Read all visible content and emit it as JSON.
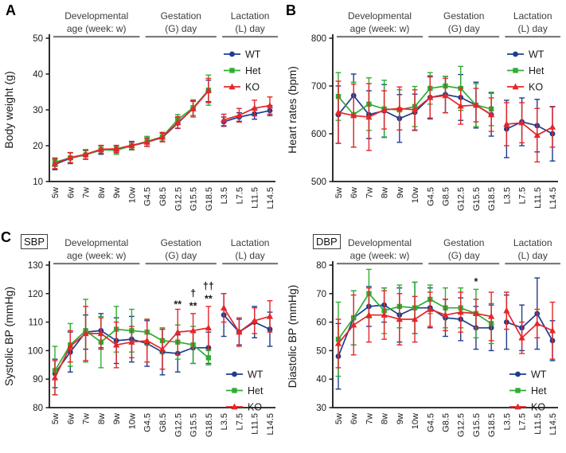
{
  "panel_labels": {
    "a": "A",
    "b": "B",
    "c": "C"
  },
  "tags": {
    "sbp": "SBP",
    "dbp": "DBP"
  },
  "shared": {
    "categories": [
      "5w",
      "6w",
      "7w",
      "8w",
      "9w",
      "10w",
      "G4.5",
      "G8.5",
      "G12.5",
      "G15.5",
      "G18.5",
      "L3.5",
      "L7.5",
      "L11.5",
      "L14.5"
    ],
    "group_headers": [
      {
        "lines": [
          "Developmental",
          "age (week: w)"
        ],
        "from": 0,
        "to": 5
      },
      {
        "lines": [
          "Gestation",
          "(G) day"
        ],
        "from": 6,
        "to": 10
      },
      {
        "lines": [
          "Lactation",
          "(L) day"
        ],
        "from": 11,
        "to": 14
      }
    ],
    "line_break_after_index": 10,
    "colors": {
      "wt": "#1e3d8d",
      "het": "#2fad33",
      "ko": "#e62629",
      "axis": "#1a1a1a",
      "header_text": "#3d3d3d",
      "header_bar": "#7b7b7b"
    }
  },
  "chart_data": [
    {
      "id": "body-weight",
      "type": "line",
      "panel": "A",
      "ylabel": "Body weight (g)",
      "ylim": [
        10,
        50
      ],
      "yticks": [
        10,
        20,
        30,
        40,
        50
      ],
      "legend_pos": "top-right",
      "series": [
        {
          "name": "WT",
          "color": "#1e3d8d",
          "marker": "circle",
          "values": [
            14.8,
            16.5,
            17.5,
            18.8,
            19.0,
            20.0,
            21.0,
            22.3,
            26.3,
            30.4,
            35.3,
            26.7,
            28.0,
            28.9,
            29.8
          ],
          "errors": [
            1.5,
            1.5,
            1.3,
            1.2,
            1.0,
            1.0,
            1.1,
            1.2,
            1.5,
            2.0,
            3.0,
            1.3,
            1.2,
            1.5,
            1.4
          ]
        },
        {
          "name": "Het",
          "color": "#2fad33",
          "marker": "square",
          "values": [
            15.4,
            16.6,
            17.4,
            18.9,
            18.7,
            20.0,
            21.2,
            22.5,
            27.3,
            30.6,
            35.5,
            null,
            null,
            null,
            null
          ],
          "errors": [
            1.2,
            1.4,
            1.2,
            1.0,
            1.1,
            1.2,
            1.4,
            1.2,
            1.4,
            2.2,
            4.2,
            null,
            null,
            null,
            null
          ]
        },
        {
          "name": "KO",
          "color": "#e62629",
          "marker": "triangle",
          "values": [
            15.0,
            16.7,
            17.6,
            19.0,
            19.1,
            20.1,
            21.0,
            22.4,
            26.5,
            30.3,
            35.4,
            27.2,
            28.5,
            30.5,
            31.2
          ],
          "errors": [
            1.4,
            1.4,
            1.3,
            1.1,
            1.0,
            1.1,
            1.2,
            1.3,
            1.6,
            2.3,
            3.4,
            1.6,
            1.9,
            2.2,
            2.4
          ]
        }
      ],
      "annotations": []
    },
    {
      "id": "heart-rates",
      "type": "line",
      "panel": "B",
      "ylabel": "Heart rates (bpm)",
      "ylim": [
        500,
        800
      ],
      "yticks": [
        500,
        600,
        700,
        800
      ],
      "legend_pos": "top-right",
      "series": [
        {
          "name": "WT",
          "color": "#1e3d8d",
          "marker": "circle",
          "values": [
            640,
            680,
            640,
            648,
            632,
            645,
            676,
            682,
            676,
            660,
            640,
            610,
            625,
            617,
            600
          ],
          "errors": [
            60,
            45,
            50,
            55,
            50,
            38,
            45,
            38,
            48,
            48,
            45,
            60,
            50,
            55,
            57
          ]
        },
        {
          "name": "Het",
          "color": "#2fad33",
          "marker": "square",
          "values": [
            678,
            640,
            662,
            652,
            650,
            657,
            695,
            700,
            695,
            660,
            652,
            null,
            null,
            null,
            null
          ],
          "errors": [
            50,
            68,
            55,
            60,
            42,
            42,
            33,
            20,
            46,
            45,
            35,
            null,
            null,
            null,
            null
          ]
        },
        {
          "name": "KO",
          "color": "#e62629",
          "marker": "triangle",
          "values": [
            645,
            638,
            635,
            650,
            653,
            650,
            676,
            680,
            658,
            660,
            640,
            620,
            623,
            597,
            614
          ],
          "errors": [
            65,
            66,
            70,
            40,
            45,
            42,
            43,
            36,
            38,
            35,
            35,
            45,
            42,
            56,
            42
          ]
        }
      ],
      "annotations": []
    },
    {
      "id": "systolic-bp",
      "type": "line",
      "panel": "C-SBP",
      "ylabel": "Systolic BP (mmHg)",
      "ylim": [
        80,
        130
      ],
      "yticks": [
        80,
        90,
        100,
        110,
        120,
        130
      ],
      "legend_pos": "bottom-right",
      "series": [
        {
          "name": "WT",
          "color": "#1e3d8d",
          "marker": "circle",
          "values": [
            92,
            99.5,
            106.5,
            107,
            103.5,
            104,
            102.5,
            99.5,
            99,
            101,
            101,
            112.5,
            106.5,
            110,
            107.5
          ],
          "errors": [
            5,
            7,
            6,
            6,
            8,
            8,
            8,
            8,
            6.5,
            5.5,
            5.5,
            7.5,
            4.5,
            5.5,
            6
          ]
        },
        {
          "name": "Het",
          "color": "#2fad33",
          "marker": "square",
          "values": [
            93,
            102,
            107,
            103,
            107.5,
            107,
            106.5,
            103.5,
            103,
            102,
            97.5,
            null,
            null,
            null,
            null
          ],
          "errors": [
            8.5,
            7.5,
            11,
            9,
            8,
            7.5,
            4.5,
            4.5,
            6,
            6.5,
            2.5,
            null,
            null,
            null,
            null
          ]
        },
        {
          "name": "KO",
          "color": "#e62629",
          "marker": "triangle",
          "values": [
            90.5,
            101.5,
            106,
            106,
            102,
            103,
            103.5,
            100.5,
            106.5,
            107,
            108,
            115,
            106.5,
            110.5,
            112
          ],
          "errors": [
            6,
            5.5,
            9.5,
            5.5,
            8,
            5.5,
            7.5,
            7,
            8,
            6,
            7.5,
            5,
            5,
            4.5,
            5.5
          ]
        }
      ],
      "annotations": [
        {
          "category": "G12.5",
          "text": "**",
          "y": 115
        },
        {
          "category": "G15.5",
          "text": "†",
          "y": 119
        },
        {
          "category": "G15.5",
          "text": "**",
          "y": 114.5
        },
        {
          "category": "G18.5",
          "text": "††",
          "y": 121.5
        },
        {
          "category": "G18.5",
          "text": "**",
          "y": 117
        }
      ]
    },
    {
      "id": "diastolic-bp",
      "type": "line",
      "panel": "C-DBP",
      "ylabel": "Diastolic BP (mmHg)",
      "ylim": [
        30,
        80
      ],
      "yticks": [
        30,
        40,
        50,
        60,
        70,
        80
      ],
      "legend_pos": "bottom-right",
      "series": [
        {
          "name": "WT",
          "color": "#1e3d8d",
          "marker": "circle",
          "values": [
            48,
            61.5,
            65.5,
            66,
            62.5,
            65,
            65,
            61.5,
            61,
            58,
            58,
            60,
            58,
            63,
            53.5
          ],
          "errors": [
            11.5,
            9.5,
            7,
            6,
            9.5,
            9,
            7,
            6.5,
            7.5,
            7.5,
            8,
            9.5,
            8,
            12.5,
            7
          ]
        },
        {
          "name": "Het",
          "color": "#2fad33",
          "marker": "square",
          "values": [
            54,
            61.5,
            70,
            64,
            65.5,
            65,
            68,
            65,
            65,
            63,
            59.5,
            null,
            null,
            null,
            null
          ],
          "errors": [
            13,
            9.5,
            8.5,
            8,
            7.5,
            9,
            5,
            7,
            7,
            8.5,
            7,
            null,
            null,
            null,
            null
          ]
        },
        {
          "name": "KO",
          "color": "#e62629",
          "marker": "triangle",
          "values": [
            52.5,
            59,
            62.5,
            62.5,
            61,
            61,
            64.5,
            62.5,
            63.5,
            63,
            62,
            64,
            54.5,
            59.5,
            57
          ],
          "errors": [
            8.5,
            10.5,
            9.5,
            8.5,
            9,
            8,
            6,
            5.5,
            7,
            5,
            8.5,
            6.5,
            5.5,
            5,
            10
          ]
        }
      ],
      "annotations": [
        {
          "category": "G15.5",
          "text": "*",
          "y": 73
        }
      ]
    }
  ]
}
